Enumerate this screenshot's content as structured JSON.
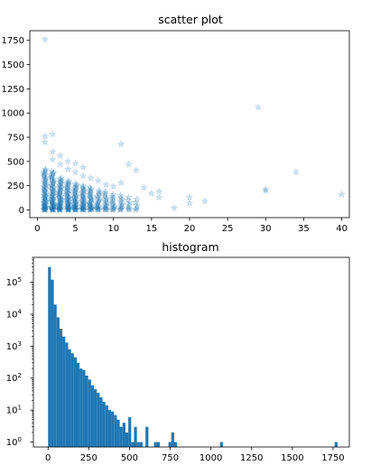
{
  "chart_data": [
    {
      "type": "scatter",
      "title": "scatter plot",
      "xlabel": "",
      "ylabel": "",
      "xlim": [
        -1,
        41
      ],
      "ylim": [
        -80,
        1850
      ],
      "xticks": [
        0,
        5,
        10,
        15,
        20,
        25,
        30,
        35,
        40
      ],
      "yticks": [
        0,
        250,
        500,
        750,
        1000,
        1250,
        1500,
        1750
      ],
      "marker": "star",
      "color": "#1f77b4",
      "alpha": 0.2,
      "grid": false,
      "columns": [
        {
          "x": 1,
          "ymax": 420,
          "n": 60
        },
        {
          "x": 2,
          "ymax": 400,
          "n": 60
        },
        {
          "x": 3,
          "ymax": 330,
          "n": 50
        },
        {
          "x": 4,
          "ymax": 300,
          "n": 45
        },
        {
          "x": 5,
          "ymax": 270,
          "n": 40
        },
        {
          "x": 6,
          "ymax": 250,
          "n": 35
        },
        {
          "x": 7,
          "ymax": 230,
          "n": 30
        },
        {
          "x": 8,
          "ymax": 200,
          "n": 22
        },
        {
          "x": 9,
          "ymax": 190,
          "n": 18
        },
        {
          "x": 10,
          "ymax": 160,
          "n": 14
        },
        {
          "x": 11,
          "ymax": 150,
          "n": 12
        },
        {
          "x": 12,
          "ymax": 130,
          "n": 8
        },
        {
          "x": 13,
          "ymax": 110,
          "n": 6
        }
      ],
      "outliers": [
        {
          "x": 1,
          "y": 1760
        },
        {
          "x": 1,
          "y": 760
        },
        {
          "x": 1,
          "y": 700
        },
        {
          "x": 2,
          "y": 780
        },
        {
          "x": 2,
          "y": 600
        },
        {
          "x": 2,
          "y": 520
        },
        {
          "x": 3,
          "y": 560
        },
        {
          "x": 3,
          "y": 470
        },
        {
          "x": 4,
          "y": 500
        },
        {
          "x": 4,
          "y": 420
        },
        {
          "x": 5,
          "y": 480
        },
        {
          "x": 5,
          "y": 390
        },
        {
          "x": 6,
          "y": 440
        },
        {
          "x": 6,
          "y": 350
        },
        {
          "x": 7,
          "y": 330
        },
        {
          "x": 8,
          "y": 300
        },
        {
          "x": 9,
          "y": 260
        },
        {
          "x": 10,
          "y": 240
        },
        {
          "x": 11,
          "y": 680
        },
        {
          "x": 11,
          "y": 280
        },
        {
          "x": 12,
          "y": 470
        },
        {
          "x": 13,
          "y": 410
        },
        {
          "x": 14,
          "y": 230
        },
        {
          "x": 15,
          "y": 170
        },
        {
          "x": 16,
          "y": 190
        },
        {
          "x": 16,
          "y": 130
        },
        {
          "x": 18,
          "y": 20
        },
        {
          "x": 20,
          "y": 130
        },
        {
          "x": 20,
          "y": 70
        },
        {
          "x": 22,
          "y": 90
        },
        {
          "x": 29,
          "y": 1060
        },
        {
          "x": 30,
          "y": 210
        },
        {
          "x": 30,
          "y": 200
        },
        {
          "x": 34,
          "y": 390
        },
        {
          "x": 40,
          "y": 160
        }
      ]
    },
    {
      "type": "bar",
      "title": "histogram",
      "xlabel": "",
      "ylabel": "",
      "yscale": "log",
      "xlim": [
        -90,
        1850
      ],
      "ylim": [
        0.7,
        600000
      ],
      "xticks": [
        0,
        250,
        500,
        750,
        1000,
        1250,
        1500,
        1750
      ],
      "yticks": [
        "10^0",
        "10^1",
        "10^2",
        "10^3",
        "10^4",
        "10^5"
      ],
      "bin_width": 17.6,
      "color": "#1f77b4",
      "bins": [
        {
          "x": 0,
          "count": 300000
        },
        {
          "x": 17.6,
          "count": 120000
        },
        {
          "x": 35.2,
          "count": 20000
        },
        {
          "x": 52.8,
          "count": 8000
        },
        {
          "x": 70.4,
          "count": 3500
        },
        {
          "x": 88,
          "count": 2000
        },
        {
          "x": 105.6,
          "count": 1300
        },
        {
          "x": 123.2,
          "count": 800
        },
        {
          "x": 140.8,
          "count": 600
        },
        {
          "x": 158.4,
          "count": 450
        },
        {
          "x": 176,
          "count": 300
        },
        {
          "x": 193.6,
          "count": 200
        },
        {
          "x": 211.2,
          "count": 180
        },
        {
          "x": 228.8,
          "count": 120
        },
        {
          "x": 246.4,
          "count": 90
        },
        {
          "x": 264,
          "count": 60
        },
        {
          "x": 281.6,
          "count": 45
        },
        {
          "x": 299.2,
          "count": 35
        },
        {
          "x": 316.8,
          "count": 25
        },
        {
          "x": 334.4,
          "count": 18
        },
        {
          "x": 352,
          "count": 14
        },
        {
          "x": 369.6,
          "count": 10
        },
        {
          "x": 387.2,
          "count": 9
        },
        {
          "x": 404.8,
          "count": 7
        },
        {
          "x": 422.4,
          "count": 5
        },
        {
          "x": 440,
          "count": 3
        },
        {
          "x": 457.6,
          "count": 4
        },
        {
          "x": 475.2,
          "count": 2
        },
        {
          "x": 492.8,
          "count": 6
        },
        {
          "x": 510.4,
          "count": 1
        },
        {
          "x": 528,
          "count": 3
        },
        {
          "x": 545.6,
          "count": 1
        },
        {
          "x": 563.2,
          "count": 1
        },
        {
          "x": 598.4,
          "count": 3
        },
        {
          "x": 651.2,
          "count": 1
        },
        {
          "x": 668.8,
          "count": 1
        },
        {
          "x": 739.2,
          "count": 1
        },
        {
          "x": 756.8,
          "count": 2
        },
        {
          "x": 774.4,
          "count": 1
        },
        {
          "x": 1056,
          "count": 1
        },
        {
          "x": 1760,
          "count": 1
        }
      ]
    }
  ]
}
